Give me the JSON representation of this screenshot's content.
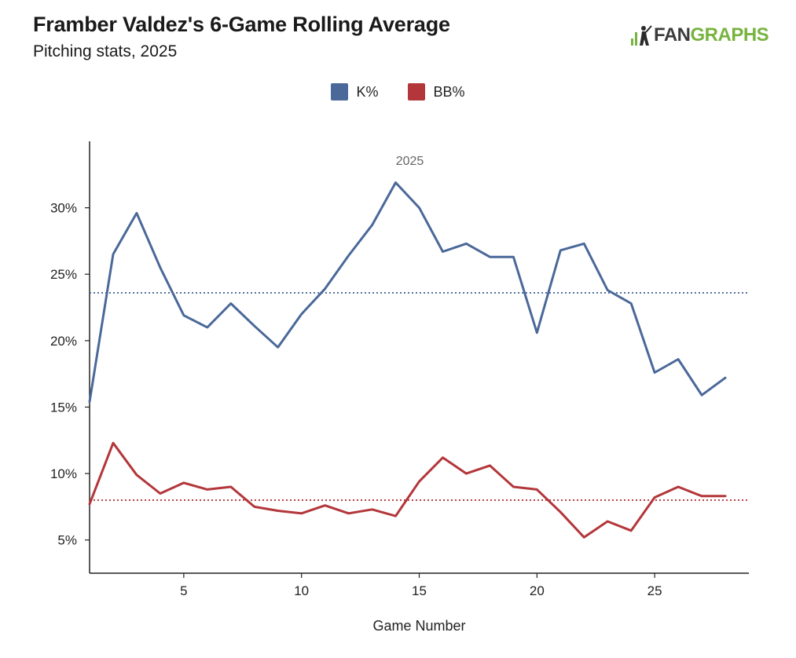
{
  "header": {
    "title": "Framber Valdez's 6-Game Rolling Average",
    "subtitle": "Pitching stats, 2025"
  },
  "logo": {
    "part1": "FAN",
    "part2": "GRAPHS"
  },
  "colors": {
    "k": "#4a6899",
    "bb": "#b3363a",
    "axis": "#222222",
    "logo_green": "#78b33f"
  },
  "chart_data": {
    "type": "line",
    "title": "Framber Valdez's 6-Game Rolling Average",
    "subtitle": "Pitching stats, 2025",
    "xlabel": "Game Number",
    "ylabel": "",
    "xlim": [
      1,
      29
    ],
    "ylim": [
      2.5,
      35
    ],
    "x_ticks": [
      5,
      10,
      15,
      20,
      25
    ],
    "y_ticks": [
      5,
      10,
      15,
      20,
      25,
      30
    ],
    "y_tick_labels": [
      "5%",
      "10%",
      "15%",
      "20%",
      "25%",
      "30%"
    ],
    "annotations": [
      {
        "text": "2025",
        "x": 14.5
      }
    ],
    "legend_position": "top-center",
    "x": [
      1,
      2,
      3,
      4,
      5,
      6,
      7,
      8,
      9,
      10,
      11,
      12,
      13,
      14,
      15,
      16,
      17,
      18,
      19,
      20,
      21,
      22,
      23,
      24,
      25,
      26,
      27,
      28
    ],
    "series": [
      {
        "name": "K%",
        "values": [
          15.4,
          26.5,
          29.6,
          25.5,
          21.9,
          21.0,
          22.8,
          21.1,
          19.5,
          22.0,
          23.9,
          26.4,
          28.7,
          31.9,
          30.0,
          26.7,
          27.3,
          26.3,
          26.3,
          20.6,
          26.8,
          27.3,
          23.8,
          22.8,
          17.6,
          18.6,
          15.9,
          17.2
        ],
        "average": 23.6
      },
      {
        "name": "BB%",
        "values": [
          7.7,
          12.3,
          9.9,
          8.5,
          9.3,
          8.8,
          9.0,
          7.5,
          7.2,
          7.0,
          7.6,
          7.0,
          7.3,
          6.8,
          9.4,
          11.2,
          10.0,
          10.6,
          9.0,
          8.8,
          7.1,
          5.2,
          6.4,
          5.7,
          8.2,
          9.0,
          8.3,
          8.3
        ],
        "average": 8.0
      }
    ]
  }
}
